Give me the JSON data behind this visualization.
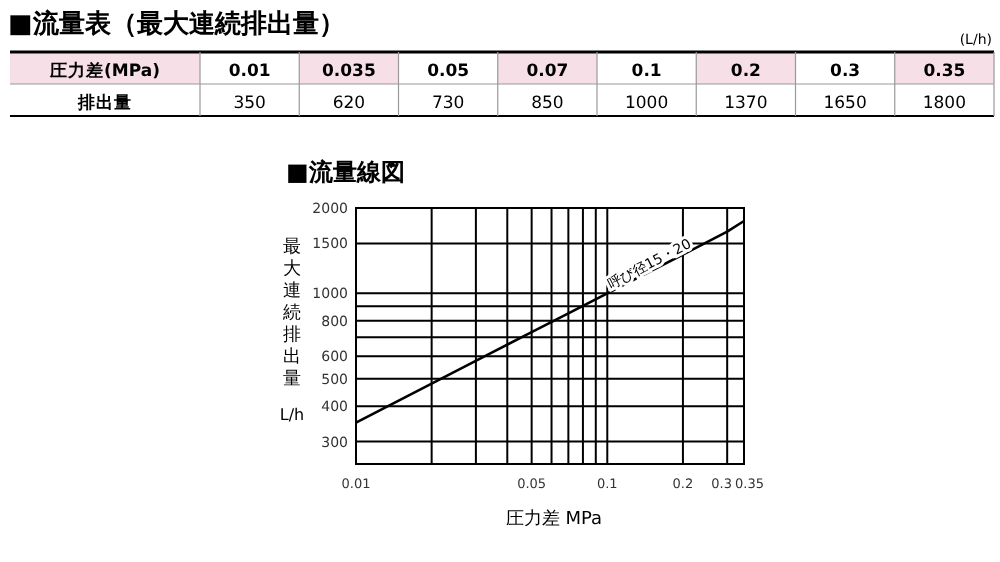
{
  "chart_data": [
    {
      "type": "other",
      "title": "■流量表（最大連続排出量）",
      "xlabel": "圧力差(MPa)",
      "ylabel": "排出量",
      "annotations": [
        "(L/h)"
      ],
      "categories": [
        "0.01",
        "0.035",
        "0.05",
        "0.07",
        "0.1",
        "0.2",
        "0.3",
        "0.35"
      ],
      "values": [
        350,
        620,
        730,
        850,
        1000,
        1370,
        1650,
        1800
      ],
      "data_labels": true
    },
    {
      "type": "line",
      "title": "■流量線図",
      "xlabel": "圧力差 MPa",
      "ylabel": "最大連続排出量 L/h",
      "x": [
        0.01,
        0.035,
        0.05,
        0.07,
        0.1,
        0.2,
        0.3,
        0.35
      ],
      "series": [
        {
          "color": "#000000",
          "values": [
            350,
            620,
            730,
            850,
            1000,
            1370,
            1650,
            1800
          ]
        }
      ],
      "log": "xy",
      "grid": true,
      "marker": "none",
      "line_style": "solid",
      "xlim": [
        0.01,
        0.35
      ],
      "ylim": [
        250,
        2000
      ],
      "xticks": [
        0.01,
        {
          "value": 0.02,
          "label": null
        },
        {
          "value": 0.03,
          "label": null
        },
        {
          "value": 0.04,
          "label": null
        },
        0.05,
        {
          "value": 0.06,
          "label": null
        },
        {
          "value": 0.07,
          "label": null
        },
        {
          "value": 0.08,
          "label": null
        },
        {
          "value": 0.09,
          "label": null
        },
        0.1,
        0.2,
        0.3,
        0.35
      ],
      "yticks": [
        300,
        400,
        500,
        600,
        {
          "value": 700,
          "label": null
        },
        800,
        {
          "value": 900,
          "label": null
        },
        1000,
        1500,
        2000
      ],
      "annotations": [
        {
          "text": "呼び径15・20",
          "x": 0.15,
          "y": 1230
        }
      ]
    }
  ]
}
